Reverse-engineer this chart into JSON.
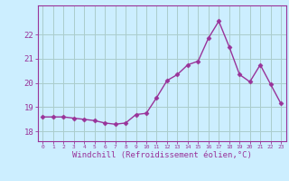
{
  "x": [
    0,
    1,
    2,
    3,
    4,
    5,
    6,
    7,
    8,
    9,
    10,
    11,
    12,
    13,
    14,
    15,
    16,
    17,
    18,
    19,
    20,
    21,
    22,
    23
  ],
  "y": [
    18.6,
    18.6,
    18.6,
    18.55,
    18.5,
    18.45,
    18.35,
    18.3,
    18.35,
    18.7,
    18.75,
    19.4,
    20.1,
    20.35,
    20.75,
    20.9,
    21.85,
    22.55,
    21.5,
    20.35,
    20.05,
    20.75,
    19.95,
    19.15
  ],
  "line_color": "#993399",
  "marker_color": "#993399",
  "bg_color": "#cceeff",
  "grid_color": "#aacccc",
  "xlabel": "Windchill (Refroidissement éolien,°C)",
  "xlabel_color": "#993399",
  "ylim_min": 17.6,
  "ylim_max": 23.2,
  "xlim_min": -0.5,
  "xlim_max": 23.5,
  "yticks": [
    18,
    19,
    20,
    21,
    22
  ],
  "xticks": [
    0,
    1,
    2,
    3,
    4,
    5,
    6,
    7,
    8,
    9,
    10,
    11,
    12,
    13,
    14,
    15,
    16,
    17,
    18,
    19,
    20,
    21,
    22,
    23
  ],
  "tick_color": "#993399",
  "tick_label_color": "#993399",
  "spine_color": "#993399",
  "figsize": [
    3.2,
    2.0
  ],
  "dpi": 100
}
